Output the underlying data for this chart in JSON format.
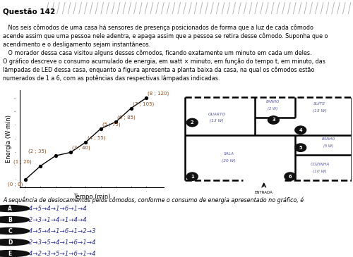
{
  "title": "Questão 142",
  "para1_indent": "   Nos seis cômodos de uma casa há sensores de presença posicionados de forma que a luz de cada cômodo\nacende assim que uma pessoa nele adentra, e apaga assim que a pessoa se retira desse cômodo. Suponha que o\nacendimento e o desligamento sejam instantâneos.",
  "para2_indent": "   O morador dessa casa visitou alguns desses cômodos, ficando exatamente um minuto em cada um deles.\nO gráfico descreve o consumo acumulado de energia, em watt × minuto, em função do tempo t, em minuto, das\nlâmpadas de LED dessa casa, enquanto a figura apresenta a planta baixa da casa, na qual os cômodos estão\nnumerados de 1 a 6, com as potências das respectivas lâmpadas indicadas.",
  "graph_points": [
    [
      0,
      0
    ],
    [
      1,
      20
    ],
    [
      2,
      35
    ],
    [
      3,
      40
    ],
    [
      4,
      55
    ],
    [
      5,
      75
    ],
    [
      6,
      85
    ],
    [
      7,
      105
    ],
    [
      8,
      120
    ]
  ],
  "graph_xlabel": "Tempo (min)",
  "graph_ylabel": "Energia (W·min)",
  "question_text": "A sequência de deslocamentos pelos cômodos, conforme o consumo de energia apresentado no gráfico, é",
  "options": [
    {
      "letter": "A",
      "text": "1→4→5→4→1→6→1→4"
    },
    {
      "letter": "B",
      "text": "1→2→3→1→4→1→4→4"
    },
    {
      "letter": "C",
      "text": "1→4→5→4→1→6→1→2→3"
    },
    {
      "letter": "D",
      "text": "1→2→3→5→4→1→6→1→4"
    },
    {
      "letter": "E",
      "text": "1→4→2→3→5→1→6→1→4"
    }
  ],
  "bg_color": "#ffffff",
  "text_color": "#000000",
  "annotation_color": "#8B4513",
  "label_color": "#5555aa",
  "wall_color": "#000000",
  "title_stripe_color": "#bbbbbb"
}
